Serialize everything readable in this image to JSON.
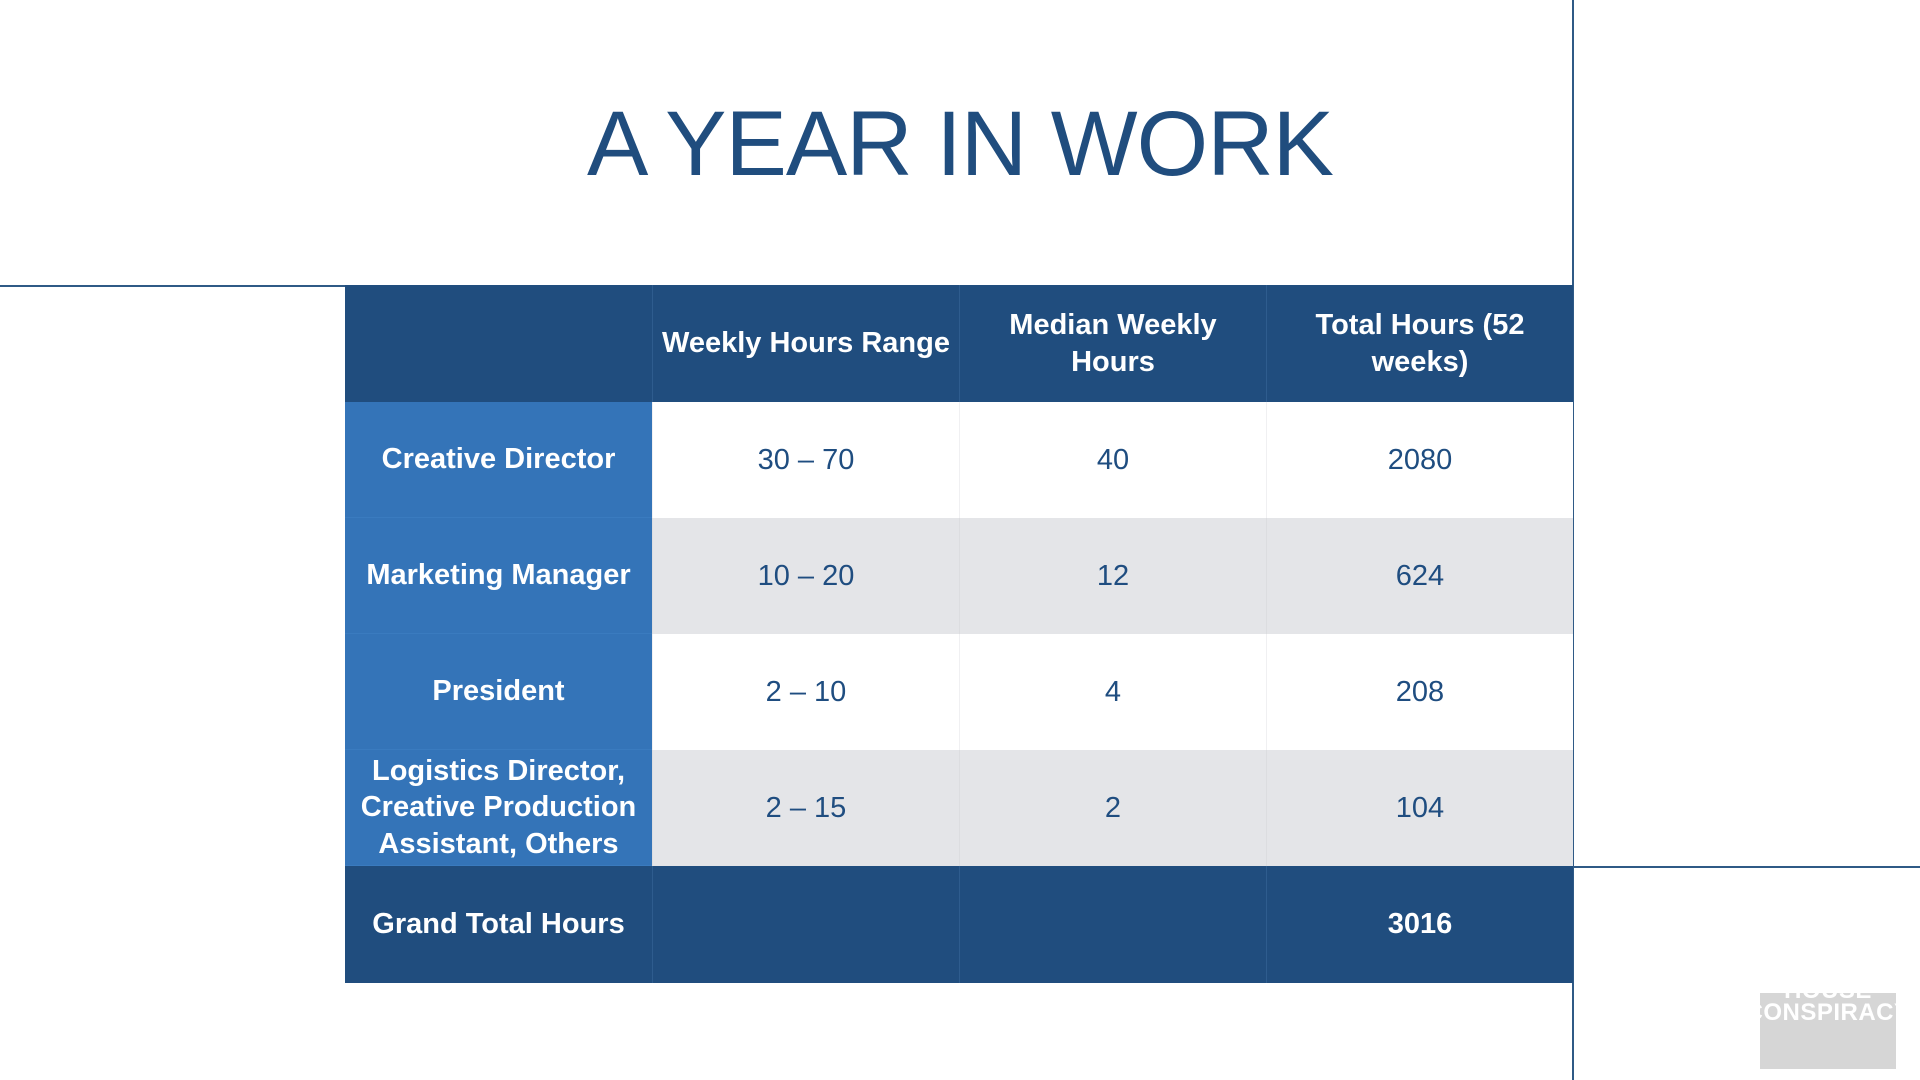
{
  "title": "A YEAR IN WORK",
  "table": {
    "headers": [
      "",
      "Weekly Hours Range",
      "Median Weekly Hours",
      "Total Hours (52 weeks)"
    ],
    "rows": [
      {
        "role": "Creative Director",
        "range": "30 – 70",
        "median": "40",
        "total": "2080"
      },
      {
        "role": "Marketing Manager",
        "range": "10 – 20",
        "median": "12",
        "total": "624"
      },
      {
        "role": "President",
        "range": "2 – 10",
        "median": "4",
        "total": "208"
      },
      {
        "role": "Logistics Director, Creative Production Assistant, Others",
        "range": "2 – 15",
        "median": "2",
        "total": "104"
      }
    ],
    "footer": {
      "label": "Grand Total Hours",
      "range": "",
      "median": "",
      "total": "3016"
    }
  },
  "logo": {
    "line1": "HOUSE",
    "line2": "CONSPIRACY"
  },
  "colors": {
    "title": "#204d7e",
    "header_bg": "#204d7e",
    "row_header_bg": "#3474b8",
    "row_alt_bg": "#e4e5e8",
    "rules": "#2f5a86"
  }
}
